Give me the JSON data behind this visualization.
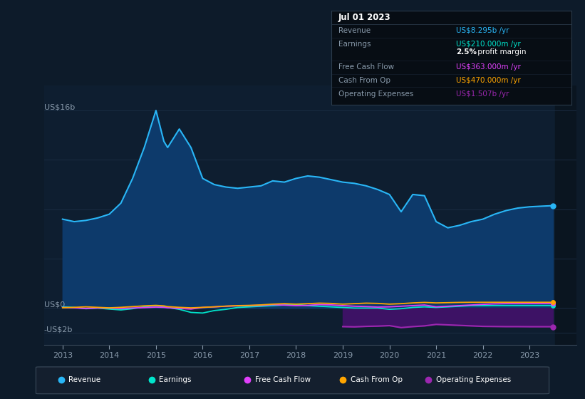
{
  "bg_color": "#0d1b2a",
  "plot_bg_color": "#0e1e30",
  "grid_color": "#1c2e45",
  "axis_color": "#3a4a5a",
  "text_color": "#8899aa",
  "ylabel_16b": "US$16b",
  "ylabel_0": "US$0",
  "ylabel_neg2b": "-US$2b",
  "ylim_min": -3000000000,
  "ylim_max": 18000000000,
  "years": [
    2013.0,
    2013.25,
    2013.5,
    2013.75,
    2014.0,
    2014.25,
    2014.5,
    2014.75,
    2015.0,
    2015.17,
    2015.25,
    2015.5,
    2015.75,
    2016.0,
    2016.25,
    2016.5,
    2016.75,
    2017.0,
    2017.25,
    2017.5,
    2017.75,
    2018.0,
    2018.25,
    2018.5,
    2018.75,
    2019.0,
    2019.25,
    2019.5,
    2019.75,
    2020.0,
    2020.25,
    2020.5,
    2020.75,
    2021.0,
    2021.25,
    2021.5,
    2021.75,
    2022.0,
    2022.25,
    2022.5,
    2022.75,
    2023.0,
    2023.25,
    2023.5
  ],
  "revenue": [
    7200000000,
    7000000000,
    7100000000,
    7300000000,
    7600000000,
    8500000000,
    10500000000,
    13000000000,
    16000000000,
    13500000000,
    13000000000,
    14500000000,
    13000000000,
    10500000000,
    10000000000,
    9800000000,
    9700000000,
    9800000000,
    9900000000,
    10300000000,
    10200000000,
    10500000000,
    10700000000,
    10600000000,
    10400000000,
    10200000000,
    10100000000,
    9900000000,
    9600000000,
    9200000000,
    7800000000,
    9200000000,
    9100000000,
    7000000000,
    6500000000,
    6700000000,
    7000000000,
    7200000000,
    7600000000,
    7900000000,
    8100000000,
    8200000000,
    8250000000,
    8295000000
  ],
  "earnings": [
    100000000,
    50000000,
    -50000000,
    0,
    -80000000,
    -150000000,
    -50000000,
    100000000,
    200000000,
    100000000,
    50000000,
    -100000000,
    -350000000,
    -400000000,
    -200000000,
    -100000000,
    50000000,
    100000000,
    150000000,
    200000000,
    250000000,
    300000000,
    200000000,
    150000000,
    100000000,
    50000000,
    0,
    0,
    0,
    -100000000,
    -50000000,
    50000000,
    100000000,
    50000000,
    100000000,
    150000000,
    200000000,
    200000000,
    210000000,
    210000000,
    210000000,
    210000000,
    210000000,
    210000000
  ],
  "free_cash_flow": [
    50000000,
    20000000,
    -30000000,
    10000000,
    0,
    -30000000,
    10000000,
    40000000,
    80000000,
    60000000,
    30000000,
    -30000000,
    -80000000,
    50000000,
    100000000,
    150000000,
    180000000,
    200000000,
    220000000,
    280000000,
    240000000,
    200000000,
    220000000,
    280000000,
    260000000,
    200000000,
    150000000,
    120000000,
    80000000,
    100000000,
    150000000,
    200000000,
    250000000,
    100000000,
    150000000,
    200000000,
    250000000,
    300000000,
    340000000,
    360000000,
    360000000,
    363000000,
    363000000,
    363000000
  ],
  "cash_from_op": [
    30000000,
    60000000,
    100000000,
    60000000,
    20000000,
    60000000,
    120000000,
    180000000,
    220000000,
    180000000,
    120000000,
    60000000,
    20000000,
    60000000,
    100000000,
    160000000,
    200000000,
    220000000,
    260000000,
    320000000,
    360000000,
    320000000,
    360000000,
    400000000,
    380000000,
    320000000,
    360000000,
    400000000,
    380000000,
    320000000,
    360000000,
    420000000,
    460000000,
    420000000,
    440000000,
    460000000,
    470000000,
    470000000,
    470000000,
    470000000,
    470000000,
    470000000,
    470000000,
    470000000
  ],
  "operating_expenses": [
    0,
    0,
    0,
    0,
    0,
    0,
    0,
    0,
    0,
    0,
    0,
    0,
    0,
    0,
    0,
    0,
    0,
    0,
    0,
    0,
    0,
    0,
    0,
    0,
    0,
    -1500000000,
    -1520000000,
    -1480000000,
    -1460000000,
    -1420000000,
    -1580000000,
    -1500000000,
    -1440000000,
    -1320000000,
    -1360000000,
    -1400000000,
    -1440000000,
    -1480000000,
    -1490000000,
    -1500000000,
    -1500000000,
    -1507000000,
    -1507000000,
    -1507000000
  ],
  "revenue_color": "#29b6f6",
  "revenue_fill_color": "#0d3a6b",
  "earnings_color": "#00e5cc",
  "free_cash_flow_color": "#e040fb",
  "cash_from_op_color": "#ffa500",
  "operating_expenses_color": "#9c27b0",
  "operating_expenses_fill_color": "#3d1265",
  "info_box_bg": "#070d14",
  "info_box_border": "#2a3a4a",
  "info_box": {
    "date": "Jul 01 2023",
    "revenue_label": "Revenue",
    "revenue_value": "US$8.295b /yr",
    "revenue_color": "#29b6f6",
    "earnings_label": "Earnings",
    "earnings_value": "US$210.000m /yr",
    "earnings_color": "#00e5cc",
    "margin_bold": "2.5%",
    "margin_rest": " profit margin",
    "fcf_label": "Free Cash Flow",
    "fcf_value": "US$363.000m /yr",
    "fcf_color": "#e040fb",
    "cfop_label": "Cash From Op",
    "cfop_value": "US$470.000m /yr",
    "cfop_color": "#ffa500",
    "opex_label": "Operating Expenses",
    "opex_value": "US$1.507b /yr",
    "opex_color": "#9c27b0"
  },
  "legend_items": [
    "Revenue",
    "Earnings",
    "Free Cash Flow",
    "Cash From Op",
    "Operating Expenses"
  ],
  "legend_colors": [
    "#29b6f6",
    "#00e5cc",
    "#e040fb",
    "#ffa500",
    "#9c27b0"
  ],
  "xtick_labels": [
    "2013",
    "2014",
    "2015",
    "2016",
    "2017",
    "2018",
    "2019",
    "2020",
    "2021",
    "2022",
    "2023"
  ],
  "xtick_values": [
    2013,
    2014,
    2015,
    2016,
    2017,
    2018,
    2019,
    2020,
    2021,
    2022,
    2023
  ],
  "xmin": 2012.6,
  "xmax": 2024.0,
  "highlight_x_start": 2023.55,
  "highlight_x_end": 2024.0
}
